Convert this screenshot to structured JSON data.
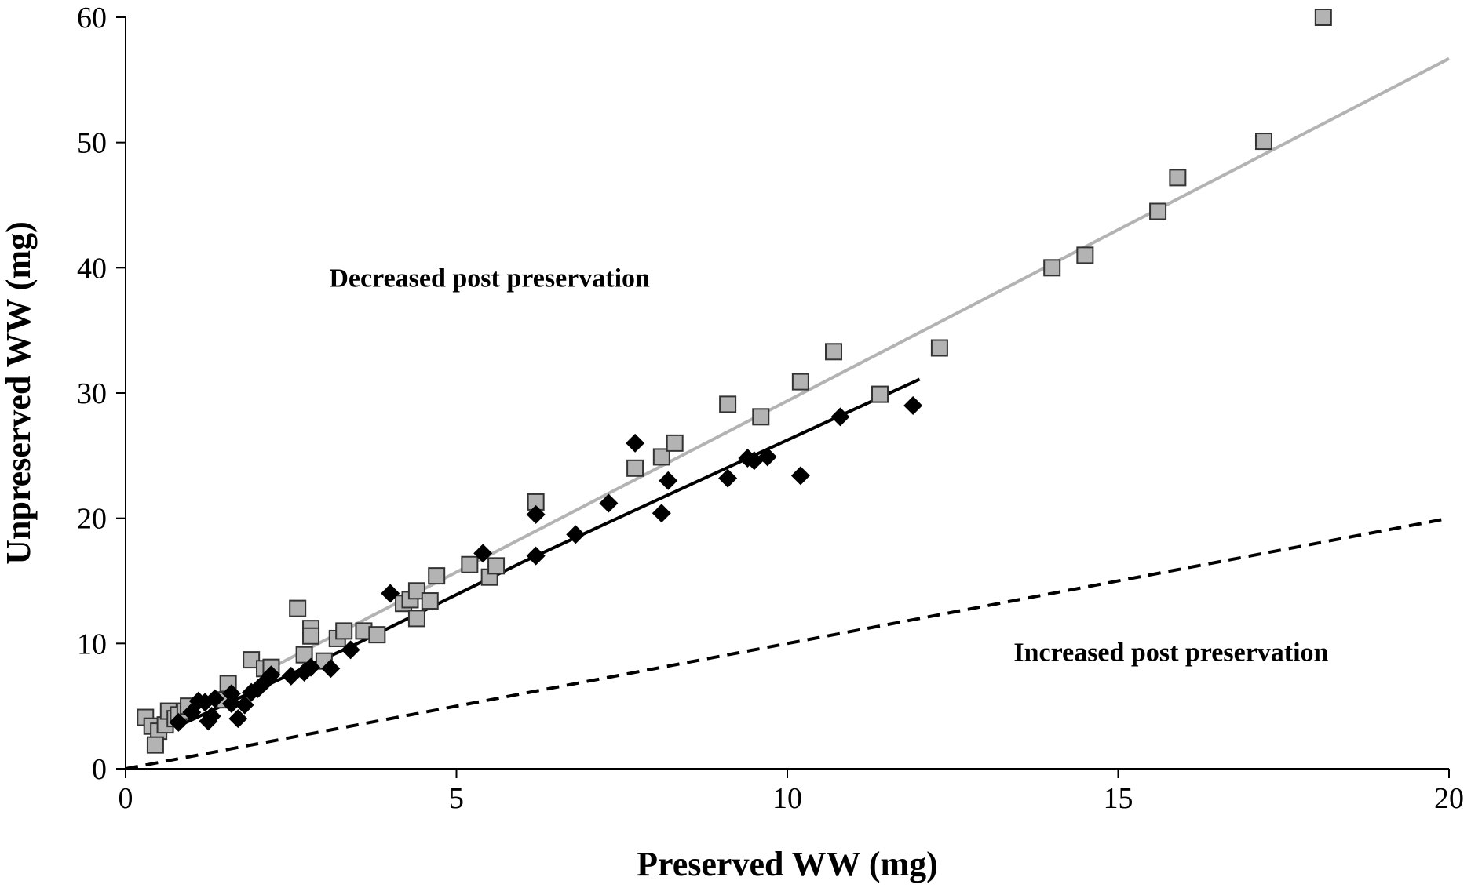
{
  "chart_data": {
    "type": "scatter",
    "title": "",
    "xlabel": "Preserved WW (mg)",
    "ylabel": "Unpreserved WW (mg)",
    "xlim": [
      0,
      20
    ],
    "ylim": [
      0,
      60
    ],
    "x_ticks": [
      0,
      5,
      10,
      15,
      20
    ],
    "y_ticks": [
      0,
      10,
      20,
      30,
      40,
      50,
      60
    ],
    "grid": false,
    "legend": "none",
    "annotations": [
      {
        "text": "Decreased post preservation",
        "x": 5.5,
        "y": 38.5
      },
      {
        "text": "Increased post preservation",
        "x": 15.8,
        "y": 8.6
      }
    ],
    "series": [
      {
        "marker": "square",
        "color": "#b3b3b3",
        "points": [
          [
            0.3,
            4.1
          ],
          [
            0.4,
            3.4
          ],
          [
            0.5,
            3.0
          ],
          [
            0.45,
            1.9
          ],
          [
            0.6,
            3.5
          ],
          [
            0.65,
            4.6
          ],
          [
            0.75,
            4.0
          ],
          [
            0.8,
            4.3
          ],
          [
            0.9,
            4.6
          ],
          [
            0.95,
            5.0
          ],
          [
            1.5,
            5.5
          ],
          [
            1.55,
            6.8
          ],
          [
            1.9,
            8.7
          ],
          [
            2.1,
            8.0
          ],
          [
            2.2,
            8.1
          ],
          [
            2.6,
            12.8
          ],
          [
            2.7,
            9.1
          ],
          [
            2.8,
            11.2
          ],
          [
            2.8,
            10.6
          ],
          [
            3.0,
            8.6
          ],
          [
            3.2,
            10.4
          ],
          [
            3.3,
            11.0
          ],
          [
            3.6,
            11.0
          ],
          [
            3.8,
            10.7
          ],
          [
            4.2,
            13.2
          ],
          [
            4.3,
            13.5
          ],
          [
            4.4,
            14.2
          ],
          [
            4.4,
            12.0
          ],
          [
            4.6,
            13.4
          ],
          [
            4.7,
            15.4
          ],
          [
            5.2,
            16.3
          ],
          [
            5.5,
            15.3
          ],
          [
            5.6,
            16.2
          ],
          [
            6.2,
            21.3
          ],
          [
            7.7,
            24.0
          ],
          [
            8.1,
            24.9
          ],
          [
            8.3,
            26.0
          ],
          [
            9.1,
            29.1
          ],
          [
            9.6,
            28.1
          ],
          [
            10.2,
            30.9
          ],
          [
            10.7,
            33.3
          ],
          [
            11.4,
            29.9
          ],
          [
            12.3,
            33.6
          ],
          [
            14.0,
            40.0
          ],
          [
            14.5,
            41.0
          ],
          [
            15.6,
            44.5
          ],
          [
            15.9,
            47.2
          ],
          [
            17.2,
            50.1
          ],
          [
            18.1,
            60.0
          ]
        ]
      },
      {
        "marker": "diamond",
        "color": "#000000",
        "points": [
          [
            0.8,
            3.7
          ],
          [
            1.0,
            4.5
          ],
          [
            1.1,
            5.4
          ],
          [
            1.2,
            5.3
          ],
          [
            1.25,
            3.8
          ],
          [
            1.3,
            4.2
          ],
          [
            1.35,
            5.6
          ],
          [
            1.6,
            5.2
          ],
          [
            1.6,
            6.0
          ],
          [
            1.7,
            4.0
          ],
          [
            1.8,
            5.1
          ],
          [
            1.9,
            6.1
          ],
          [
            2.0,
            6.4
          ],
          [
            2.1,
            6.9
          ],
          [
            2.2,
            7.5
          ],
          [
            2.5,
            7.4
          ],
          [
            2.7,
            7.7
          ],
          [
            2.8,
            8.1
          ],
          [
            3.1,
            8.0
          ],
          [
            3.4,
            9.5
          ],
          [
            4.0,
            14.0
          ],
          [
            5.4,
            17.2
          ],
          [
            6.2,
            17.0
          ],
          [
            6.2,
            20.3
          ],
          [
            6.8,
            18.7
          ],
          [
            7.3,
            21.2
          ],
          [
            7.7,
            26.0
          ],
          [
            8.1,
            20.4
          ],
          [
            8.2,
            23.0
          ],
          [
            9.1,
            23.2
          ],
          [
            9.4,
            24.8
          ],
          [
            9.5,
            24.6
          ],
          [
            9.7,
            24.9
          ],
          [
            10.2,
            23.4
          ],
          [
            10.8,
            28.1
          ],
          [
            11.9,
            29.0
          ]
        ]
      }
    ],
    "lines": [
      {
        "style": "solid",
        "color": "#b3b3b3",
        "x": [
          2.0,
          20.0
        ],
        "y": [
          7.5,
          56.7
        ]
      },
      {
        "style": "solid",
        "color": "#000000",
        "x": [
          0.75,
          3.5,
          6.0,
          8.5,
          12.0
        ],
        "y": [
          3.3,
          10.0,
          16.5,
          22.6,
          31.1
        ]
      },
      {
        "style": "dashed",
        "color": "#000000",
        "x": [
          0.0,
          20.0
        ],
        "y": [
          0.0,
          20.0
        ]
      }
    ]
  }
}
